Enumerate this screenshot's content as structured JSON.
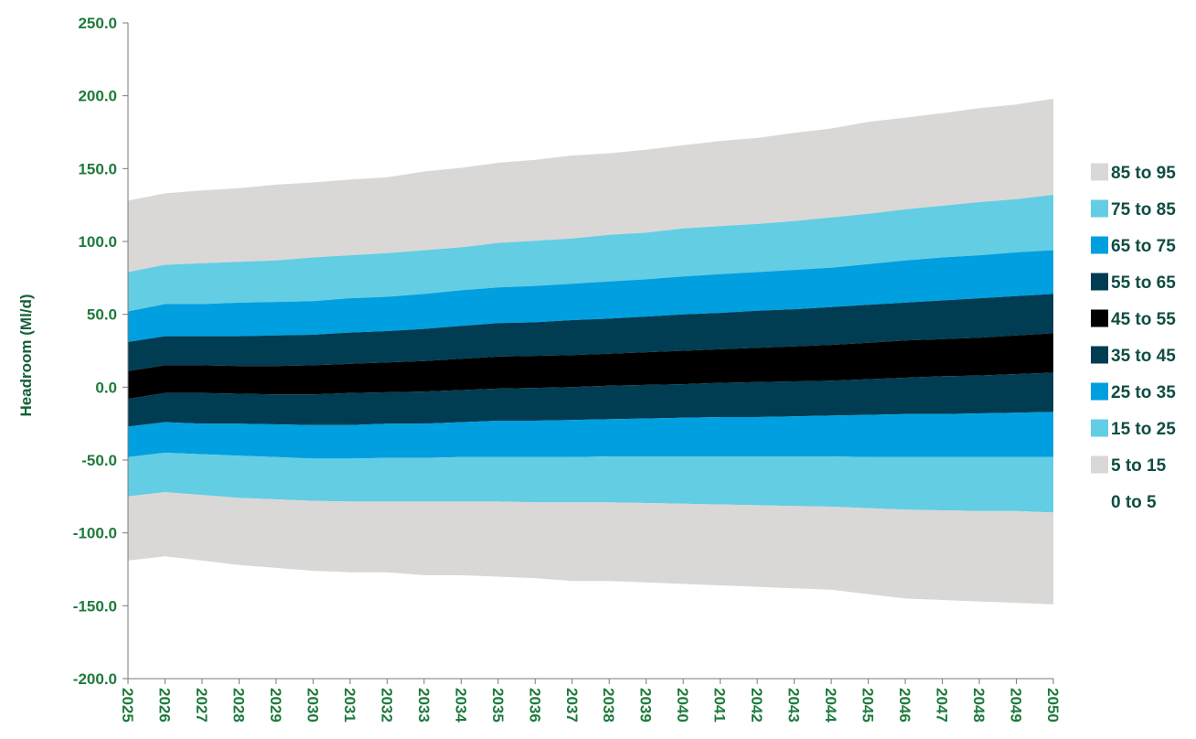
{
  "chart_data": {
    "type": "area",
    "title": "",
    "xlabel": "",
    "ylabel": "Headroom (Ml/d)",
    "ylim": [
      -200,
      250
    ],
    "y_ticks": [
      250,
      200,
      150,
      100,
      50,
      0,
      -50,
      -100,
      -150,
      -200
    ],
    "y_tick_labels": [
      "250.0",
      "200.0",
      "150.0",
      "100.0",
      "50.0",
      "0.0",
      "-50.0",
      "-100.0",
      "-150.0",
      "-200.0"
    ],
    "x": [
      2025,
      2026,
      2027,
      2028,
      2029,
      2030,
      2031,
      2032,
      2033,
      2034,
      2035,
      2036,
      2037,
      2038,
      2039,
      2040,
      2041,
      2042,
      2043,
      2044,
      2045,
      2046,
      2047,
      2048,
      2049,
      2050
    ],
    "x_tick_labels": [
      "2025",
      "2026",
      "2027",
      "2028",
      "2029",
      "2030",
      "2031",
      "2032",
      "2033",
      "2034",
      "2035",
      "2036",
      "2037",
      "2038",
      "2039",
      "2040",
      "2041",
      "2042",
      "2043",
      "2044",
      "2045",
      "2046",
      "2047",
      "2048",
      "2049",
      "2050"
    ],
    "grid": false,
    "legend_position": "right",
    "boundaries": {
      "p5": [
        -119,
        -116,
        -119,
        -122,
        -124,
        -126,
        -127,
        -127,
        -129,
        -129,
        -130,
        -131,
        -133,
        -133,
        -134,
        -135,
        -136,
        -137,
        -138,
        -139,
        -142,
        -145,
        -146,
        -147,
        -148,
        -149
      ],
      "p15": [
        -75,
        -72,
        -74,
        -76,
        -77,
        -78,
        -78.5,
        -78.5,
        -78.5,
        -78.5,
        -78.5,
        -79,
        -79,
        -79,
        -79.5,
        -80,
        -80.5,
        -81,
        -81.5,
        -82,
        -83,
        -84,
        -84.5,
        -85,
        -85,
        -86
      ],
      "p25": [
        -48,
        -45,
        -46,
        -47,
        -48,
        -49,
        -49,
        -48.5,
        -48.5,
        -48,
        -48,
        -48,
        -48,
        -47.5,
        -47.5,
        -47.5,
        -47.5,
        -47.5,
        -47.5,
        -47.5,
        -48,
        -48,
        -48,
        -48,
        -48,
        -48
      ],
      "p35": [
        -27,
        -24,
        -25,
        -25,
        -25.5,
        -26,
        -26,
        -25,
        -25,
        -24,
        -23,
        -23,
        -22.5,
        -22,
        -21.5,
        -21,
        -20.5,
        -20.5,
        -20,
        -19.5,
        -19,
        -18.5,
        -18.5,
        -18,
        -17.5,
        -17
      ],
      "p45": [
        -8,
        -4,
        -4,
        -4.5,
        -5,
        -5,
        -4,
        -3.5,
        -3,
        -2,
        -1,
        -0.5,
        0,
        1,
        1.5,
        2,
        3,
        3.5,
        4,
        4.5,
        5.5,
        6.5,
        7.5,
        8,
        9,
        10
      ],
      "p55": [
        11,
        15,
        15,
        14.5,
        14.5,
        15,
        16,
        17,
        18,
        19.5,
        21,
        21.5,
        22,
        23,
        24,
        25,
        26,
        27,
        28,
        29,
        30.5,
        32,
        33,
        34,
        35.5,
        37
      ],
      "p65": [
        31,
        35,
        35,
        35,
        35.5,
        36,
        37.5,
        38.5,
        40,
        42,
        44,
        44.5,
        46,
        47,
        48.5,
        50,
        51,
        52.5,
        53.5,
        55,
        56.5,
        58,
        59.5,
        61,
        62.5,
        64
      ],
      "p75": [
        52,
        57,
        57,
        58,
        58.5,
        59,
        61,
        62,
        64,
        66.5,
        68.5,
        69.5,
        71,
        72.5,
        74,
        76,
        77.5,
        79,
        80.5,
        82,
        84.5,
        87,
        89,
        90.5,
        92.5,
        94
      ],
      "p85": [
        79,
        84,
        85,
        86,
        87,
        89,
        90.5,
        92,
        94,
        96,
        99,
        100.5,
        102,
        104.5,
        106,
        109,
        110.5,
        112,
        114,
        116.5,
        119,
        122,
        124.5,
        127,
        129,
        132
      ],
      "p95": [
        128,
        133,
        135,
        136.5,
        139,
        140.5,
        142.5,
        144,
        148,
        150.5,
        154,
        156,
        159,
        160.5,
        163,
        166,
        169,
        171,
        174.5,
        177.5,
        182,
        185,
        188,
        191.5,
        194,
        198
      ]
    },
    "bands": [
      {
        "name": "85 to 95",
        "lower": "p85",
        "upper": "p95",
        "color": "#d9d8d6"
      },
      {
        "name": "75 to 85",
        "lower": "p75",
        "upper": "p85",
        "color": "#63cde3"
      },
      {
        "name": "65 to 75",
        "lower": "p65",
        "upper": "p75",
        "color": "#009fe0"
      },
      {
        "name": "55 to 65",
        "lower": "p55",
        "upper": "p65",
        "color": "#003d52"
      },
      {
        "name": "45 to 55",
        "lower": "p45",
        "upper": "p55",
        "color": "#000000"
      },
      {
        "name": "35 to 45",
        "lower": "p35",
        "upper": "p45",
        "color": "#003d52"
      },
      {
        "name": "25 to 35",
        "lower": "p25",
        "upper": "p35",
        "color": "#009fe0"
      },
      {
        "name": "15 to 25",
        "lower": "p15",
        "upper": "p25",
        "color": "#63cde3"
      },
      {
        "name": "5 to 15",
        "lower": "p5",
        "upper": "p15",
        "color": "#d9d8d6"
      },
      {
        "name": "0 to 5",
        "lower": null,
        "upper": null,
        "color": "#ffffff"
      }
    ]
  }
}
